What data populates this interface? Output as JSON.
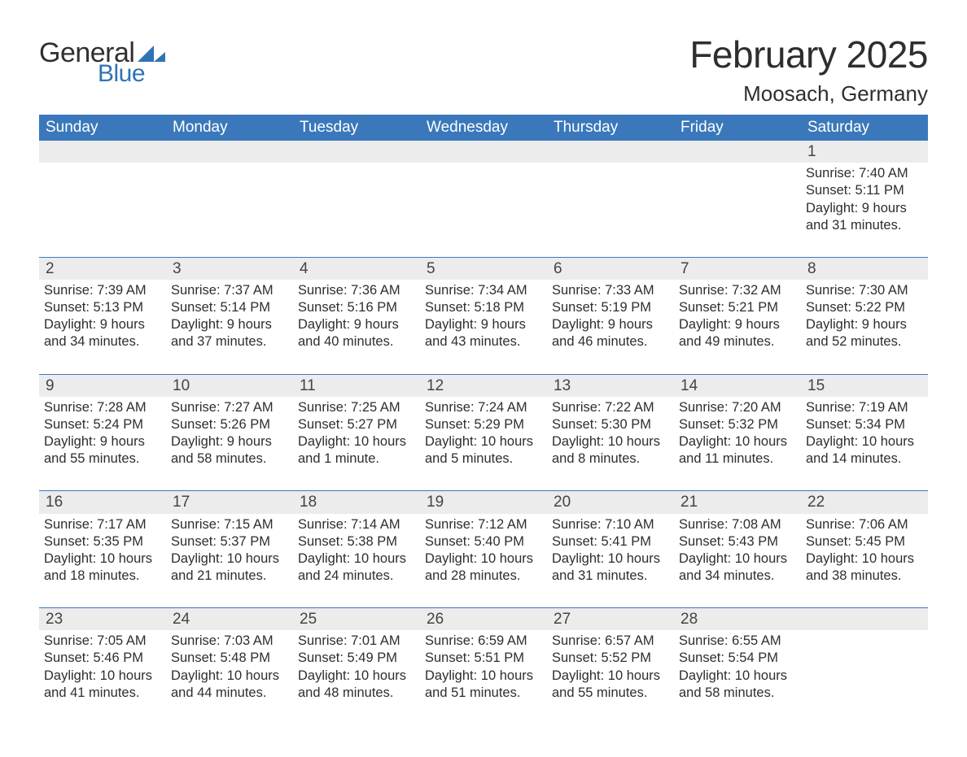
{
  "brand": {
    "word1": "General",
    "word2": "Blue",
    "triangle_color": "#2f73b6",
    "text_dark": "#303030",
    "text_blue": "#2f73b6"
  },
  "header": {
    "title": "February 2025",
    "location": "Moosach, Germany"
  },
  "colors": {
    "header_bg": "#3a78bb",
    "header_text": "#ffffff",
    "band_bg": "#ececec",
    "body_text": "#2e2e2e",
    "row_border": "#3a78bb",
    "page_bg": "#ffffff"
  },
  "typography": {
    "title_fontsize": 46,
    "location_fontsize": 26,
    "dayheader_fontsize": 19,
    "daynum_fontsize": 19,
    "body_fontsize": 16.5,
    "font_family": "Arial, Helvetica, sans-serif"
  },
  "day_labels": [
    "Sunday",
    "Monday",
    "Tuesday",
    "Wednesday",
    "Thursday",
    "Friday",
    "Saturday"
  ],
  "weeks": [
    [
      null,
      null,
      null,
      null,
      null,
      null,
      {
        "n": "1",
        "sunrise": "Sunrise: 7:40 AM",
        "sunset": "Sunset: 5:11 PM",
        "daylight": "Daylight: 9 hours and 31 minutes."
      }
    ],
    [
      {
        "n": "2",
        "sunrise": "Sunrise: 7:39 AM",
        "sunset": "Sunset: 5:13 PM",
        "daylight": "Daylight: 9 hours and 34 minutes."
      },
      {
        "n": "3",
        "sunrise": "Sunrise: 7:37 AM",
        "sunset": "Sunset: 5:14 PM",
        "daylight": "Daylight: 9 hours and 37 minutes."
      },
      {
        "n": "4",
        "sunrise": "Sunrise: 7:36 AM",
        "sunset": "Sunset: 5:16 PM",
        "daylight": "Daylight: 9 hours and 40 minutes."
      },
      {
        "n": "5",
        "sunrise": "Sunrise: 7:34 AM",
        "sunset": "Sunset: 5:18 PM",
        "daylight": "Daylight: 9 hours and 43 minutes."
      },
      {
        "n": "6",
        "sunrise": "Sunrise: 7:33 AM",
        "sunset": "Sunset: 5:19 PM",
        "daylight": "Daylight: 9 hours and 46 minutes."
      },
      {
        "n": "7",
        "sunrise": "Sunrise: 7:32 AM",
        "sunset": "Sunset: 5:21 PM",
        "daylight": "Daylight: 9 hours and 49 minutes."
      },
      {
        "n": "8",
        "sunrise": "Sunrise: 7:30 AM",
        "sunset": "Sunset: 5:22 PM",
        "daylight": "Daylight: 9 hours and 52 minutes."
      }
    ],
    [
      {
        "n": "9",
        "sunrise": "Sunrise: 7:28 AM",
        "sunset": "Sunset: 5:24 PM",
        "daylight": "Daylight: 9 hours and 55 minutes."
      },
      {
        "n": "10",
        "sunrise": "Sunrise: 7:27 AM",
        "sunset": "Sunset: 5:26 PM",
        "daylight": "Daylight: 9 hours and 58 minutes."
      },
      {
        "n": "11",
        "sunrise": "Sunrise: 7:25 AM",
        "sunset": "Sunset: 5:27 PM",
        "daylight": "Daylight: 10 hours and 1 minute."
      },
      {
        "n": "12",
        "sunrise": "Sunrise: 7:24 AM",
        "sunset": "Sunset: 5:29 PM",
        "daylight": "Daylight: 10 hours and 5 minutes."
      },
      {
        "n": "13",
        "sunrise": "Sunrise: 7:22 AM",
        "sunset": "Sunset: 5:30 PM",
        "daylight": "Daylight: 10 hours and 8 minutes."
      },
      {
        "n": "14",
        "sunrise": "Sunrise: 7:20 AM",
        "sunset": "Sunset: 5:32 PM",
        "daylight": "Daylight: 10 hours and 11 minutes."
      },
      {
        "n": "15",
        "sunrise": "Sunrise: 7:19 AM",
        "sunset": "Sunset: 5:34 PM",
        "daylight": "Daylight: 10 hours and 14 minutes."
      }
    ],
    [
      {
        "n": "16",
        "sunrise": "Sunrise: 7:17 AM",
        "sunset": "Sunset: 5:35 PM",
        "daylight": "Daylight: 10 hours and 18 minutes."
      },
      {
        "n": "17",
        "sunrise": "Sunrise: 7:15 AM",
        "sunset": "Sunset: 5:37 PM",
        "daylight": "Daylight: 10 hours and 21 minutes."
      },
      {
        "n": "18",
        "sunrise": "Sunrise: 7:14 AM",
        "sunset": "Sunset: 5:38 PM",
        "daylight": "Daylight: 10 hours and 24 minutes."
      },
      {
        "n": "19",
        "sunrise": "Sunrise: 7:12 AM",
        "sunset": "Sunset: 5:40 PM",
        "daylight": "Daylight: 10 hours and 28 minutes."
      },
      {
        "n": "20",
        "sunrise": "Sunrise: 7:10 AM",
        "sunset": "Sunset: 5:41 PM",
        "daylight": "Daylight: 10 hours and 31 minutes."
      },
      {
        "n": "21",
        "sunrise": "Sunrise: 7:08 AM",
        "sunset": "Sunset: 5:43 PM",
        "daylight": "Daylight: 10 hours and 34 minutes."
      },
      {
        "n": "22",
        "sunrise": "Sunrise: 7:06 AM",
        "sunset": "Sunset: 5:45 PM",
        "daylight": "Daylight: 10 hours and 38 minutes."
      }
    ],
    [
      {
        "n": "23",
        "sunrise": "Sunrise: 7:05 AM",
        "sunset": "Sunset: 5:46 PM",
        "daylight": "Daylight: 10 hours and 41 minutes."
      },
      {
        "n": "24",
        "sunrise": "Sunrise: 7:03 AM",
        "sunset": "Sunset: 5:48 PM",
        "daylight": "Daylight: 10 hours and 44 minutes."
      },
      {
        "n": "25",
        "sunrise": "Sunrise: 7:01 AM",
        "sunset": "Sunset: 5:49 PM",
        "daylight": "Daylight: 10 hours and 48 minutes."
      },
      {
        "n": "26",
        "sunrise": "Sunrise: 6:59 AM",
        "sunset": "Sunset: 5:51 PM",
        "daylight": "Daylight: 10 hours and 51 minutes."
      },
      {
        "n": "27",
        "sunrise": "Sunrise: 6:57 AM",
        "sunset": "Sunset: 5:52 PM",
        "daylight": "Daylight: 10 hours and 55 minutes."
      },
      {
        "n": "28",
        "sunrise": "Sunrise: 6:55 AM",
        "sunset": "Sunset: 5:54 PM",
        "daylight": "Daylight: 10 hours and 58 minutes."
      },
      null
    ]
  ]
}
